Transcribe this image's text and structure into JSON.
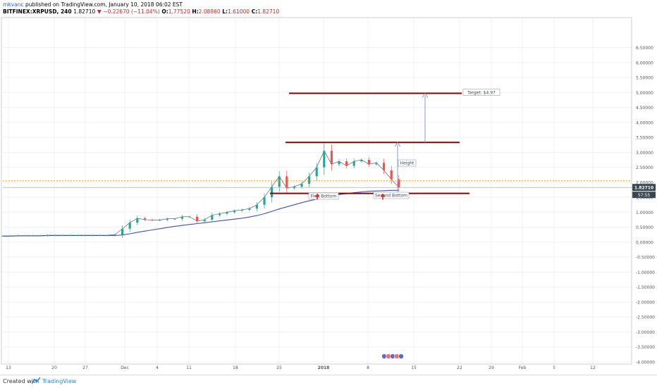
{
  "header": {
    "username": "mkvanc",
    "published_text": "published on TradingView.com, January 10, 2018 06:02 EST",
    "symbol": "BITFINEX:XRPUSD, 240",
    "last_price": "1.82710",
    "change_arrow": "▼",
    "change": "−0.22670 (−11.04%)",
    "o_label": "O:",
    "o_value": "1.77520",
    "h_label": "H:",
    "h_value": "2.08860",
    "l_label": "L:",
    "l_value": "1.61000",
    "c_label": "C:",
    "c_value": "1.82710"
  },
  "footer": {
    "created_with": "Created with",
    "brand": "TradingView"
  },
  "price_axis": {
    "ticks": [
      "6.50000",
      "6.00000",
      "5.50000",
      "5.00000",
      "4.50000",
      "4.00000",
      "3.50000",
      "3.00000",
      "2.50000",
      "2.00000",
      "1.50000",
      "1.00000",
      "0.50000",
      "0.00000",
      "-0.50000",
      "-1.00000",
      "-1.50000",
      "-2.00000",
      "-2.50000",
      "-3.00000",
      "-3.50000",
      "-4.00000"
    ],
    "current_price_label": "1.82710",
    "countdown_label": "57:55"
  },
  "time_axis": {
    "ticks": [
      "13",
      "20",
      "27",
      "Dec",
      "4",
      "11",
      "18",
      "25",
      "2018",
      "8",
      "15",
      "22",
      "29",
      "Feb",
      "5",
      "12"
    ]
  },
  "annotations": {
    "target_label": "Target: $4.97",
    "height_label": "Height",
    "first_bottom_label": "First Bottom",
    "second_bottom_label": "Second Bottom",
    "levels": [
      4.97,
      3.33,
      1.63
    ],
    "dotted_level": 2.05
  },
  "colors": {
    "candle_up": "#26a69a",
    "candle_down": "#ef5350",
    "moving_average": "#3f51b5",
    "level_line": "#8b0000",
    "arrow_red": "#d32f2f",
    "projection_arrow": "#7b8fd6",
    "dotted_line": "#ff9800"
  },
  "chart_data": {
    "type": "line",
    "series": [
      {
        "values": [
          0.21,
          0.21,
          0.22,
          0.22,
          0.22,
          0.22,
          0.23,
          0.23,
          0.23,
          0.23,
          0.23,
          0.23,
          0.23,
          0.23,
          0.23,
          0.25,
          0.45,
          0.65,
          0.8,
          0.75,
          0.74,
          0.74,
          0.78,
          0.78,
          0.85,
          0.85,
          0.7,
          0.75,
          0.9,
          0.95,
          1.0,
          1.05,
          1.08,
          1.12,
          1.25,
          1.5,
          1.85,
          2.2,
          1.8,
          1.85,
          1.95,
          2.2,
          2.5,
          3.05,
          2.6,
          2.7,
          2.55,
          2.7,
          2.75,
          2.6,
          2.65,
          2.4,
          2.1,
          1.83
        ]
      },
      {
        "values": [
          0.2,
          0.2,
          0.21,
          0.21,
          0.21,
          0.21,
          0.22,
          0.22,
          0.22,
          0.22,
          0.22,
          0.22,
          0.22,
          0.22,
          0.22,
          0.22,
          0.24,
          0.28,
          0.33,
          0.37,
          0.41,
          0.45,
          0.49,
          0.53,
          0.56,
          0.59,
          0.62,
          0.65,
          0.68,
          0.71,
          0.74,
          0.77,
          0.8,
          0.84,
          0.89,
          0.95,
          1.03,
          1.11,
          1.18,
          1.25,
          1.32,
          1.38,
          1.44,
          1.5,
          1.55,
          1.59,
          1.62,
          1.65,
          1.68,
          1.7,
          1.71,
          1.72,
          1.73,
          1.73
        ]
      }
    ],
    "ylim": [
      -4.0,
      7.0
    ],
    "grid": true
  }
}
